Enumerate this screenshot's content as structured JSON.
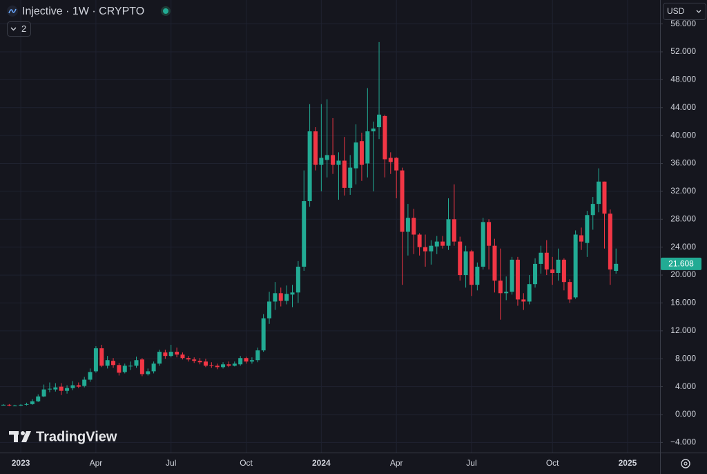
{
  "chart_data": {
    "type": "candlestick",
    "title": "Injective · 1W · CRYPTO",
    "currency": "USD",
    "indicators": 2,
    "watermark": "TradingView",
    "up_color": "#22ab94",
    "down_color": "#f23645",
    "grid": true,
    "categories": [
      null,
      null,
      null,
      "2023",
      null,
      null,
      null,
      null,
      null,
      null,
      null,
      null,
      null,
      null,
      null,
      null,
      "Apr",
      null,
      null,
      null,
      null,
      null,
      null,
      null,
      null,
      null,
      null,
      null,
      null,
      "Jul",
      null,
      null,
      null,
      null,
      null,
      null,
      null,
      null,
      null,
      null,
      null,
      null,
      "Oct",
      null,
      null,
      null,
      null,
      null,
      null,
      null,
      null,
      null,
      null,
      null,
      null,
      "2024",
      null,
      null,
      null,
      null,
      null,
      null,
      null,
      null,
      null,
      null,
      null,
      null,
      "Apr",
      null,
      null,
      null,
      null,
      null,
      null,
      null,
      null,
      null,
      null,
      null,
      null,
      "Jul",
      null,
      null,
      null,
      null,
      null,
      null,
      null,
      null,
      null,
      null,
      null,
      null,
      null,
      "Oct",
      null,
      null,
      null,
      null,
      null,
      null,
      null,
      null,
      null,
      null,
      null,
      null,
      "2025"
    ],
    "open": [
      1.4,
      1.4,
      1.3,
      1.3,
      1.4,
      1.5,
      1.9,
      2.6,
      3.6,
      3.6,
      4.0,
      3.4,
      3.8,
      4.2,
      4.1,
      5.0,
      6.2,
      9.5,
      7.0,
      7.7,
      7.1,
      6.1,
      6.9,
      7.0,
      7.9,
      5.8,
      6.2,
      7.3,
      8.9,
      8.4,
      9.0,
      8.6,
      8.1,
      7.9,
      7.7,
      7.6,
      7.1,
      7.0,
      6.8,
      7.2,
      7.0,
      7.2,
      8.1,
      7.6,
      7.8,
      9.2,
      13.8,
      16.2,
      17.4,
      16.3,
      17.2,
      17.5,
      21.2,
      30.6,
      40.6,
      35.8,
      36.5,
      37.2,
      35.8,
      36.4,
      32.5,
      35.3,
      39.2,
      36.0,
      40.6,
      41.2,
      42.8,
      36.8,
      36.8,
      35.0,
      26.2,
      28.2,
      25.8,
      24.0,
      23.4,
      24.1,
      24.8,
      24.2,
      28.0,
      24.8,
      20.0,
      23.4,
      18.6,
      21.2,
      27.6,
      24.2,
      19.2,
      17.4,
      17.6,
      22.2,
      16.5,
      16.2,
      18.7,
      21.6,
      23.2,
      20.8,
      20.3,
      22.2,
      19.0,
      16.8,
      25.7,
      24.6,
      28.6,
      30.2,
      33.4,
      28.8,
      20.6,
      null,
      null
    ],
    "high": [
      1.5,
      1.5,
      1.4,
      1.5,
      1.7,
      2.2,
      2.9,
      4.3,
      4.6,
      4.5,
      4.5,
      4.2,
      4.8,
      4.6,
      5.4,
      6.6,
      9.8,
      10.0,
      8.4,
      8.1,
      7.4,
      7.3,
      7.6,
      8.3,
      8.1,
      6.6,
      7.6,
      9.3,
      9.3,
      10.0,
      9.6,
      8.9,
      8.4,
      8.2,
      8.1,
      8.0,
      7.5,
      7.3,
      7.5,
      7.6,
      7.6,
      8.4,
      8.3,
      8.2,
      9.6,
      14.4,
      17.6,
      19.0,
      18.2,
      18.5,
      18.6,
      22.0,
      35.0,
      44.5,
      41.2,
      44.5,
      45.2,
      42.5,
      37.6,
      39.8,
      37.2,
      41.6,
      40.4,
      46.8,
      42.0,
      53.4,
      43.0,
      37.6,
      36.9,
      35.4,
      30.2,
      29.5,
      26.0,
      25.8,
      25.0,
      25.6,
      25.6,
      31.0,
      33.0,
      25.5,
      24.2,
      23.6,
      21.8,
      28.2,
      28.0,
      25.2,
      23.8,
      19.8,
      22.6,
      22.6,
      17.4,
      20.0,
      22.4,
      24.2,
      25.0,
      22.6,
      23.8,
      22.4,
      19.4,
      26.4,
      26.8,
      29.2,
      31.2,
      35.3,
      33.4,
      29.4,
      23.8,
      null,
      null
    ],
    "low": [
      1.3,
      1.2,
      1.2,
      1.2,
      1.3,
      1.4,
      1.8,
      2.5,
      3.2,
      3.3,
      2.8,
      3.0,
      3.5,
      3.8,
      3.9,
      4.7,
      6.0,
      6.8,
      6.6,
      6.7,
      5.6,
      5.9,
      6.4,
      6.7,
      5.5,
      5.6,
      5.9,
      7.0,
      8.0,
      8.2,
      8.2,
      7.9,
      7.6,
      7.4,
      7.2,
      6.8,
      6.7,
      6.5,
      6.6,
      6.8,
      6.9,
      7.0,
      7.3,
      7.3,
      7.5,
      9.0,
      13.0,
      15.0,
      15.5,
      15.8,
      15.4,
      16.0,
      20.6,
      29.8,
      35.0,
      32.0,
      34.0,
      34.5,
      30.8,
      31.4,
      31.5,
      33.0,
      33.5,
      34.0,
      32.0,
      39.5,
      34.0,
      34.5,
      31.0,
      18.6,
      22.8,
      23.0,
      22.8,
      21.2,
      21.5,
      23.0,
      23.8,
      23.6,
      24.2,
      19.2,
      18.2,
      17.0,
      17.8,
      20.8,
      20.8,
      17.5,
      13.6,
      16.4,
      17.2,
      15.6,
      15.0,
      15.8,
      18.2,
      20.2,
      20.0,
      18.6,
      19.2,
      17.8,
      16.0,
      16.6,
      23.6,
      22.6,
      26.5,
      29.0,
      23.8,
      18.6,
      20.2,
      null,
      null
    ],
    "close": [
      1.4,
      1.3,
      1.3,
      1.4,
      1.5,
      1.9,
      2.6,
      3.6,
      3.7,
      3.9,
      3.4,
      3.8,
      4.2,
      4.0,
      5.0,
      6.1,
      9.5,
      7.0,
      7.8,
      7.1,
      6.0,
      7.0,
      7.0,
      7.8,
      5.8,
      6.2,
      7.3,
      9.0,
      8.4,
      9.0,
      8.6,
      8.1,
      7.9,
      7.7,
      7.5,
      7.0,
      7.0,
      6.8,
      7.2,
      7.0,
      7.3,
      8.1,
      7.6,
      7.8,
      9.2,
      13.8,
      16.2,
      17.4,
      16.3,
      17.3,
      17.5,
      21.2,
      30.6,
      40.6,
      35.8,
      36.8,
      37.2,
      35.8,
      36.4,
      32.5,
      35.4,
      39.0,
      35.8,
      40.6,
      41.0,
      43.0,
      36.6,
      36.2,
      35.0,
      26.2,
      28.2,
      25.8,
      24.0,
      23.4,
      24.2,
      24.8,
      24.2,
      28.0,
      24.8,
      20.0,
      23.4,
      18.6,
      21.2,
      27.6,
      24.2,
      19.2,
      17.4,
      17.6,
      22.2,
      16.5,
      16.2,
      18.7,
      21.6,
      23.2,
      20.8,
      20.3,
      22.2,
      19.0,
      16.5,
      25.8,
      24.8,
      28.6,
      30.2,
      33.4,
      28.8,
      20.8,
      21.608,
      null,
      null
    ],
    "ylim": [
      -5.45,
      59.43
    ],
    "yticks": [
      {
        "value": -4,
        "label": "−4.000"
      },
      {
        "value": 0,
        "label": "0.000"
      },
      {
        "value": 4,
        "label": "4.000"
      },
      {
        "value": 8,
        "label": "8.000"
      },
      {
        "value": 12,
        "label": "12.000"
      },
      {
        "value": 16,
        "label": "16.000"
      },
      {
        "value": 20,
        "label": "20.000"
      },
      {
        "value": 24,
        "label": "24.000"
      },
      {
        "value": 28,
        "label": "28.000"
      },
      {
        "value": 32,
        "label": "32.000"
      },
      {
        "value": 36,
        "label": "36.000"
      },
      {
        "value": 40,
        "label": "40.000"
      },
      {
        "value": 44,
        "label": "44.000"
      },
      {
        "value": 48,
        "label": "48.000"
      },
      {
        "value": 52,
        "label": "52.000"
      },
      {
        "value": 56,
        "label": "56.000"
      }
    ]
  }
}
